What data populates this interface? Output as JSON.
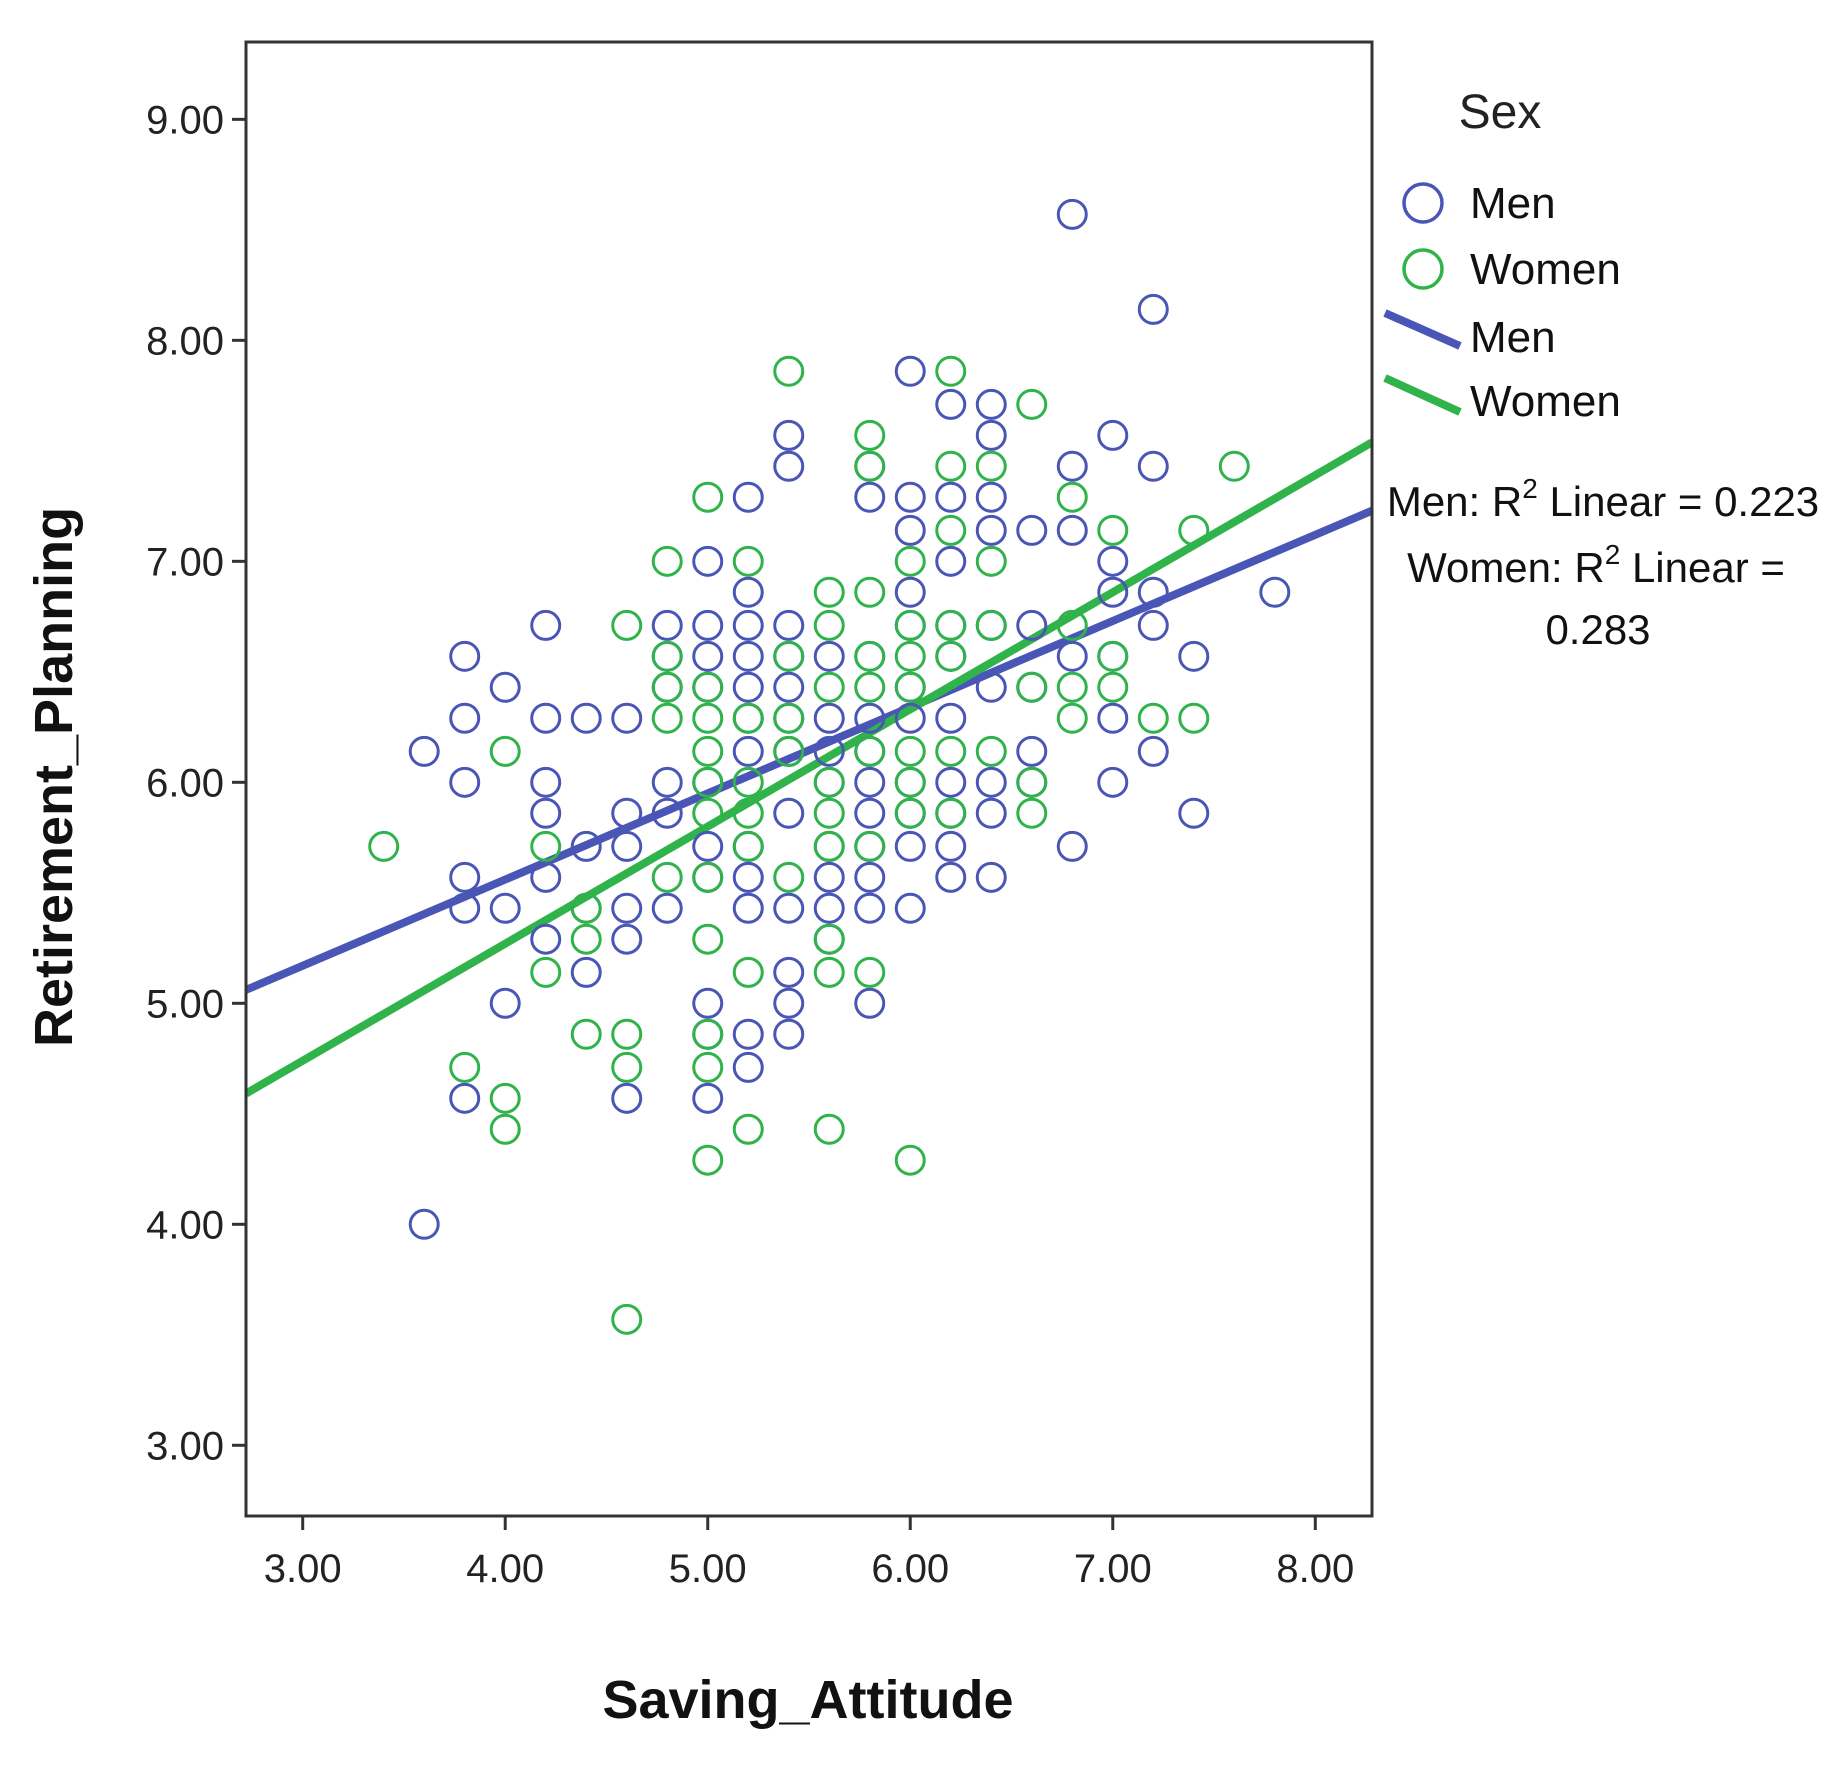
{
  "chart_data": {
    "type": "scatter",
    "title": "",
    "xlabel": "Saving_Attitude",
    "ylabel": "Retirement_Planning",
    "xlim": [
      2.72,
      8.28
    ],
    "ylim": [
      2.68,
      9.35
    ],
    "x_ticks": [
      3.0,
      4.0,
      5.0,
      6.0,
      7.0,
      8.0
    ],
    "x_tick_labels": [
      "3.00",
      "4.00",
      "5.00",
      "6.00",
      "7.00",
      "8.00"
    ],
    "y_ticks": [
      3.0,
      4.0,
      5.0,
      6.0,
      7.0,
      8.0,
      9.0
    ],
    "y_tick_labels": [
      "3.00",
      "4.00",
      "5.00",
      "6.00",
      "7.00",
      "8.00",
      "9.00"
    ],
    "grid": false,
    "legend": {
      "title": "Sex",
      "position": "right",
      "marker_entries": [
        "Men",
        "Women"
      ],
      "line_entries": [
        "Men",
        "Women"
      ]
    },
    "colors": {
      "Men": "#4a56b5",
      "Women": "#2fb34a"
    },
    "series": [
      {
        "name": "Men",
        "marker": "open-circle",
        "points": [
          [
            3.6,
            6.14
          ],
          [
            3.6,
            4.0
          ],
          [
            3.8,
            6.57
          ],
          [
            3.8,
            6.29
          ],
          [
            3.8,
            6.0
          ],
          [
            3.8,
            5.57
          ],
          [
            3.8,
            5.43
          ],
          [
            3.8,
            4.57
          ],
          [
            4.0,
            6.43
          ],
          [
            4.0,
            5.43
          ],
          [
            4.0,
            5.0
          ],
          [
            4.2,
            6.71
          ],
          [
            4.2,
            6.29
          ],
          [
            4.2,
            6.0
          ],
          [
            4.2,
            5.86
          ],
          [
            4.2,
            5.57
          ],
          [
            4.2,
            5.29
          ],
          [
            4.4,
            6.29
          ],
          [
            4.4,
            5.71
          ],
          [
            4.4,
            5.43
          ],
          [
            4.4,
            5.14
          ],
          [
            4.6,
            6.29
          ],
          [
            4.6,
            5.86
          ],
          [
            4.6,
            5.71
          ],
          [
            4.6,
            5.43
          ],
          [
            4.6,
            5.29
          ],
          [
            4.6,
            4.57
          ],
          [
            4.8,
            6.71
          ],
          [
            4.8,
            6.57
          ],
          [
            4.8,
            6.43
          ],
          [
            4.8,
            6.0
          ],
          [
            4.8,
            5.86
          ],
          [
            4.8,
            5.43
          ],
          [
            5.0,
            7.0
          ],
          [
            5.0,
            6.71
          ],
          [
            5.0,
            6.57
          ],
          [
            5.0,
            6.43
          ],
          [
            5.0,
            6.0
          ],
          [
            5.0,
            5.71
          ],
          [
            5.0,
            5.57
          ],
          [
            5.0,
            5.0
          ],
          [
            5.0,
            4.86
          ],
          [
            5.0,
            4.57
          ],
          [
            5.2,
            7.29
          ],
          [
            5.2,
            6.86
          ],
          [
            5.2,
            6.71
          ],
          [
            5.2,
            6.57
          ],
          [
            5.2,
            6.43
          ],
          [
            5.2,
            6.29
          ],
          [
            5.2,
            6.14
          ],
          [
            5.2,
            5.71
          ],
          [
            5.2,
            5.57
          ],
          [
            5.2,
            5.43
          ],
          [
            5.2,
            4.86
          ],
          [
            5.2,
            4.71
          ],
          [
            5.4,
            7.57
          ],
          [
            5.4,
            7.43
          ],
          [
            5.4,
            6.71
          ],
          [
            5.4,
            6.57
          ],
          [
            5.4,
            6.43
          ],
          [
            5.4,
            6.29
          ],
          [
            5.4,
            6.14
          ],
          [
            5.4,
            5.86
          ],
          [
            5.4,
            5.43
          ],
          [
            5.4,
            5.14
          ],
          [
            5.4,
            5.0
          ],
          [
            5.4,
            4.86
          ],
          [
            5.6,
            6.57
          ],
          [
            5.6,
            6.29
          ],
          [
            5.6,
            6.14
          ],
          [
            5.6,
            6.0
          ],
          [
            5.6,
            5.71
          ],
          [
            5.6,
            5.57
          ],
          [
            5.6,
            5.43
          ],
          [
            5.6,
            5.29
          ],
          [
            5.8,
            7.43
          ],
          [
            5.8,
            7.29
          ],
          [
            5.8,
            6.57
          ],
          [
            5.8,
            6.29
          ],
          [
            5.8,
            6.14
          ],
          [
            5.8,
            6.0
          ],
          [
            5.8,
            5.86
          ],
          [
            5.8,
            5.71
          ],
          [
            5.8,
            5.57
          ],
          [
            5.8,
            5.43
          ],
          [
            5.8,
            5.0
          ],
          [
            6.0,
            7.86
          ],
          [
            6.0,
            7.29
          ],
          [
            6.0,
            7.14
          ],
          [
            6.0,
            6.86
          ],
          [
            6.0,
            6.71
          ],
          [
            6.0,
            6.43
          ],
          [
            6.0,
            6.29
          ],
          [
            6.0,
            6.0
          ],
          [
            6.0,
            5.86
          ],
          [
            6.0,
            5.71
          ],
          [
            6.0,
            5.43
          ],
          [
            6.2,
            7.71
          ],
          [
            6.2,
            7.29
          ],
          [
            6.2,
            7.0
          ],
          [
            6.2,
            6.71
          ],
          [
            6.2,
            6.57
          ],
          [
            6.2,
            6.29
          ],
          [
            6.2,
            6.0
          ],
          [
            6.2,
            5.86
          ],
          [
            6.2,
            5.71
          ],
          [
            6.2,
            5.57
          ],
          [
            6.4,
            7.71
          ],
          [
            6.4,
            7.57
          ],
          [
            6.4,
            7.29
          ],
          [
            6.4,
            7.14
          ],
          [
            6.4,
            6.71
          ],
          [
            6.4,
            6.43
          ],
          [
            6.4,
            6.0
          ],
          [
            6.4,
            5.86
          ],
          [
            6.4,
            5.57
          ],
          [
            6.6,
            7.14
          ],
          [
            6.6,
            6.71
          ],
          [
            6.6,
            6.43
          ],
          [
            6.6,
            6.14
          ],
          [
            6.6,
            6.0
          ],
          [
            6.8,
            8.57
          ],
          [
            6.8,
            7.43
          ],
          [
            6.8,
            7.14
          ],
          [
            6.8,
            6.57
          ],
          [
            6.8,
            5.71
          ],
          [
            7.0,
            7.57
          ],
          [
            7.0,
            7.0
          ],
          [
            7.0,
            6.86
          ],
          [
            7.0,
            6.57
          ],
          [
            7.0,
            6.29
          ],
          [
            7.0,
            6.0
          ],
          [
            7.2,
            8.14
          ],
          [
            7.2,
            7.43
          ],
          [
            7.2,
            6.86
          ],
          [
            7.2,
            6.71
          ],
          [
            7.2,
            6.14
          ],
          [
            7.4,
            6.57
          ],
          [
            7.4,
            5.86
          ],
          [
            7.8,
            6.86
          ]
        ]
      },
      {
        "name": "Women",
        "marker": "open-circle",
        "points": [
          [
            3.4,
            5.71
          ],
          [
            3.8,
            4.71
          ],
          [
            4.0,
            6.14
          ],
          [
            4.0,
            4.57
          ],
          [
            4.0,
            4.43
          ],
          [
            4.2,
            5.71
          ],
          [
            4.2,
            5.14
          ],
          [
            4.4,
            5.43
          ],
          [
            4.4,
            5.29
          ],
          [
            4.4,
            4.86
          ],
          [
            4.6,
            6.71
          ],
          [
            4.6,
            4.86
          ],
          [
            4.6,
            4.71
          ],
          [
            4.6,
            3.57
          ],
          [
            4.8,
            7.0
          ],
          [
            4.8,
            6.57
          ],
          [
            4.8,
            6.43
          ],
          [
            4.8,
            6.29
          ],
          [
            4.8,
            5.57
          ],
          [
            5.0,
            7.29
          ],
          [
            5.0,
            6.43
          ],
          [
            5.0,
            6.29
          ],
          [
            5.0,
            6.14
          ],
          [
            5.0,
            6.0
          ],
          [
            5.0,
            5.86
          ],
          [
            5.0,
            5.57
          ],
          [
            5.0,
            5.29
          ],
          [
            5.0,
            4.86
          ],
          [
            5.0,
            4.71
          ],
          [
            5.0,
            4.29
          ],
          [
            5.2,
            7.0
          ],
          [
            5.2,
            6.29
          ],
          [
            5.2,
            6.0
          ],
          [
            5.2,
            5.86
          ],
          [
            5.2,
            5.71
          ],
          [
            5.2,
            5.14
          ],
          [
            5.2,
            4.43
          ],
          [
            5.4,
            7.86
          ],
          [
            5.4,
            6.57
          ],
          [
            5.4,
            6.29
          ],
          [
            5.4,
            6.14
          ],
          [
            5.4,
            5.57
          ],
          [
            5.6,
            6.86
          ],
          [
            5.6,
            6.71
          ],
          [
            5.6,
            6.43
          ],
          [
            5.6,
            6.0
          ],
          [
            5.6,
            5.86
          ],
          [
            5.6,
            5.71
          ],
          [
            5.6,
            5.29
          ],
          [
            5.6,
            5.14
          ],
          [
            5.6,
            4.43
          ],
          [
            5.8,
            7.57
          ],
          [
            5.8,
            7.43
          ],
          [
            5.8,
            6.86
          ],
          [
            5.8,
            6.57
          ],
          [
            5.8,
            6.43
          ],
          [
            5.8,
            6.14
          ],
          [
            5.8,
            5.71
          ],
          [
            5.8,
            5.14
          ],
          [
            6.0,
            7.0
          ],
          [
            6.0,
            6.71
          ],
          [
            6.0,
            6.57
          ],
          [
            6.0,
            6.43
          ],
          [
            6.0,
            6.14
          ],
          [
            6.0,
            6.0
          ],
          [
            6.0,
            5.86
          ],
          [
            6.0,
            4.29
          ],
          [
            6.2,
            7.86
          ],
          [
            6.2,
            7.43
          ],
          [
            6.2,
            7.14
          ],
          [
            6.2,
            6.71
          ],
          [
            6.2,
            6.57
          ],
          [
            6.2,
            6.14
          ],
          [
            6.2,
            5.86
          ],
          [
            6.4,
            7.43
          ],
          [
            6.4,
            7.0
          ],
          [
            6.4,
            6.71
          ],
          [
            6.4,
            6.14
          ],
          [
            6.6,
            7.71
          ],
          [
            6.6,
            6.43
          ],
          [
            6.6,
            6.0
          ],
          [
            6.6,
            5.86
          ],
          [
            6.8,
            7.29
          ],
          [
            6.8,
            6.71
          ],
          [
            6.8,
            6.43
          ],
          [
            6.8,
            6.29
          ],
          [
            7.0,
            7.14
          ],
          [
            7.0,
            6.57
          ],
          [
            7.0,
            6.43
          ],
          [
            7.2,
            6.29
          ],
          [
            7.4,
            7.14
          ],
          [
            7.4,
            6.29
          ],
          [
            7.6,
            7.43
          ]
        ]
      }
    ],
    "fit_lines": [
      {
        "name": "Men",
        "slope": 0.39,
        "intercept": 4.0,
        "r2": 0.223,
        "x_range": [
          2.72,
          8.28
        ]
      },
      {
        "name": "Women",
        "slope": 0.53,
        "intercept": 3.15,
        "r2": 0.283,
        "x_range": [
          2.72,
          8.28
        ]
      }
    ],
    "annotations": [
      "Men: R2 Linear = 0.223",
      "Women: R2 Linear = 0.283"
    ]
  },
  "r2_text": {
    "men_prefix": "Men: R",
    "sup": "2",
    "men_suffix": " Linear = 0.223",
    "women_prefix": "Women: R",
    "women_suffix": " Linear =",
    "women_value": "0.283"
  }
}
